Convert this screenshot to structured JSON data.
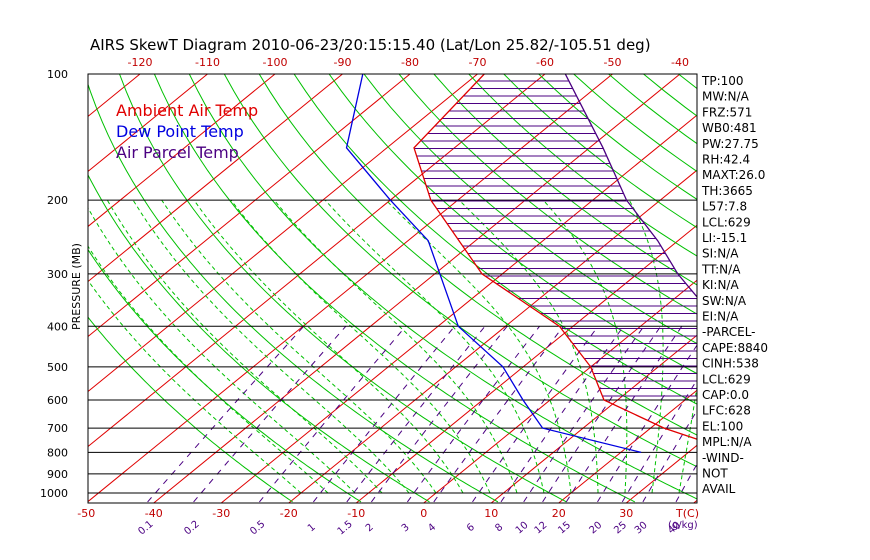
{
  "chart_data": {
    "type": "skewt",
    "title": "AIRS SkewT Diagram 2010-06-23/20:15:15.40 (Lat/Lon 25.82/-105.51 deg)",
    "ylabel": "PRESSURE (MB)",
    "xlabel": "T(C)",
    "mixing_ratio_unit": "(g/kg)",
    "pressure_ticks": [
      100,
      200,
      300,
      400,
      500,
      600,
      700,
      800,
      900,
      1000
    ],
    "top_temp_ticks": [
      -120,
      -110,
      -100,
      -90,
      -80,
      -70,
      -60,
      -50,
      -40
    ],
    "bottom_temp_ticks": [
      -50,
      -40,
      -30,
      -20,
      -10,
      0,
      10,
      20,
      30
    ],
    "mixing_ratio_labels": [
      "0.1",
      "0.2",
      "0.5",
      "1",
      "1.5",
      "2",
      "3",
      "4",
      "6",
      "8",
      "10",
      "12",
      "15",
      "20",
      "25",
      "30",
      "40"
    ],
    "legend": [
      {
        "label": "Ambient Air Temp",
        "color": "#e00000"
      },
      {
        "label": "Dew Point Temp",
        "color": "#0000e0"
      },
      {
        "label": "Air Parcel Temp",
        "color": "#4b0082"
      }
    ],
    "series": [
      {
        "name": "Ambient Air Temp",
        "color": "#e00000",
        "points": [
          [
            1000,
            47.0
          ],
          [
            850,
            44.0
          ],
          [
            700,
            22.0
          ],
          [
            600,
            8.0
          ],
          [
            500,
            0.0
          ],
          [
            400,
            -12.0
          ],
          [
            300,
            -33.0
          ],
          [
            200,
            -54.0
          ],
          [
            150,
            -66.0
          ],
          [
            100,
            -69.0
          ]
        ]
      },
      {
        "name": "Dew Point Temp",
        "color": "#0000e0",
        "points": [
          [
            800,
            23.0
          ],
          [
            700,
            4.0
          ],
          [
            600,
            -4.0
          ],
          [
            500,
            -13.0
          ],
          [
            400,
            -27.0
          ],
          [
            250,
            -47.0
          ],
          [
            200,
            -60.0
          ],
          [
            150,
            -76.0
          ],
          [
            100,
            -87.0
          ]
        ]
      },
      {
        "name": "Air Parcel Temp",
        "color": "#4b0082",
        "points": [
          [
            650,
            29.0
          ],
          [
            600,
            28.0
          ],
          [
            500,
            22.0
          ],
          [
            400,
            12.0
          ],
          [
            300,
            -4.0
          ],
          [
            250,
            -13.0
          ],
          [
            200,
            -25.0
          ],
          [
            150,
            -38.0
          ],
          [
            100,
            -57.0
          ]
        ]
      }
    ],
    "stats": [
      "TP:100",
      "MW:N/A",
      "FRZ:571",
      "WB0:481",
      "PW:27.75",
      "RH:42.4",
      "MAXT:26.0",
      "TH:3665",
      "L57:7.8",
      "LCL:629",
      "LI:-15.1",
      "SI:N/A",
      "TT:N/A",
      "KI:N/A",
      "SW:N/A",
      "EI:N/A",
      "-PARCEL-",
      "CAPE:8840",
      "CINH:538",
      "LCL:629",
      "CAP:0.0",
      "LFC:628",
      "EL:100",
      "MPL:N/A",
      "-WIND-",
      "NOT",
      "AVAIL"
    ],
    "colors": {
      "isotherm": "#e00000",
      "dry_adiabat": "#00c000",
      "moist_adiabat": "#00c000",
      "mixing_ratio": "#4b0082",
      "isobar": "#000000",
      "cape_hatch": "#4b0082"
    }
  }
}
